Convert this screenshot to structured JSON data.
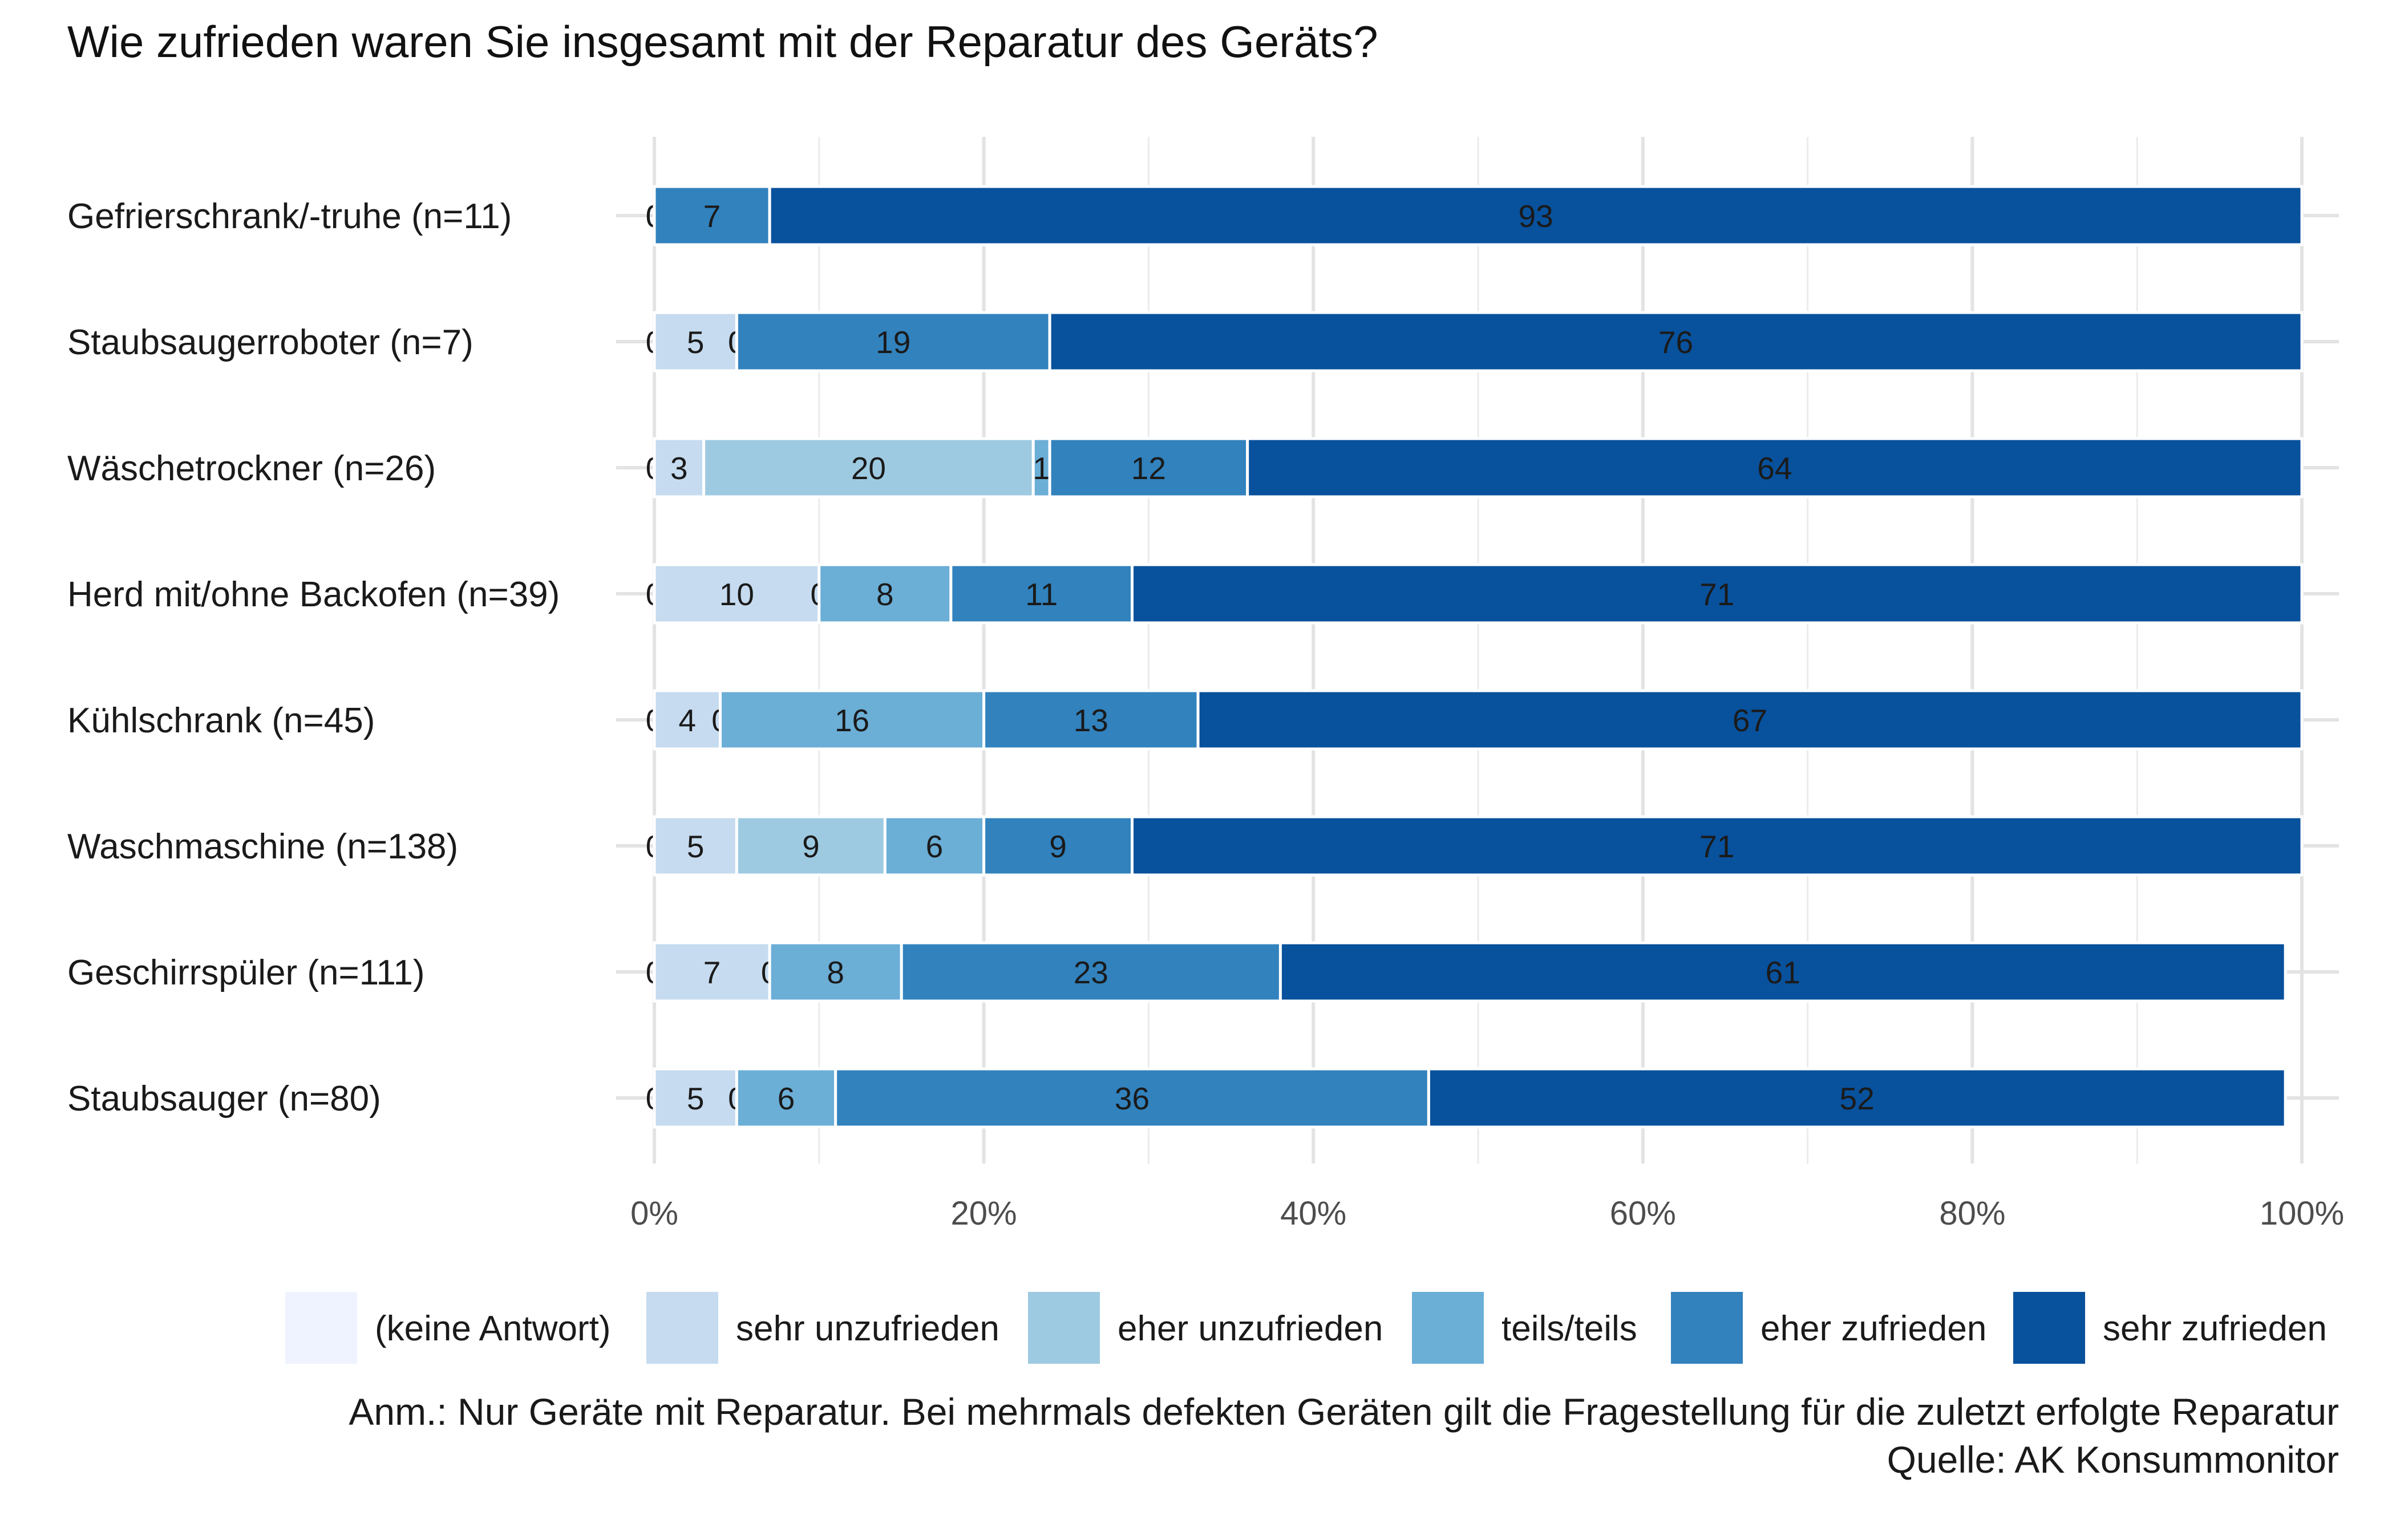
{
  "chart_data": {
    "type": "bar",
    "orientation": "horizontal",
    "stacked": true,
    "title": "Wie zufrieden waren Sie insgesamt mit der Reparatur des Geräts?",
    "xlabel": "",
    "ylabel": "",
    "xlim": [
      0,
      100
    ],
    "x_ticks": [
      "0%",
      "20%",
      "40%",
      "60%",
      "80%",
      "100%"
    ],
    "grid": true,
    "legend_position": "bottom",
    "categories": [
      "Gefrierschrank/-truhe (n=11)",
      "Staubsaugerroboter (n=7)",
      "Wäschetrockner (n=26)",
      "Herd mit/ohne Backofen (n=39)",
      "Kühlschrank (n=45)",
      "Waschmaschine (n=138)",
      "Geschirrspüler (n=111)",
      "Staubsauger (n=80)"
    ],
    "series": [
      {
        "name": "(keine Antwort)",
        "color": "#eff3ff",
        "values": [
          0,
          0,
          0,
          0,
          0,
          0,
          0,
          0
        ],
        "labels": [
          "0",
          "0",
          "0",
          "0",
          "0",
          "0",
          "0",
          "0"
        ]
      },
      {
        "name": "sehr unzufrieden",
        "color": "#c6dbef",
        "values": [
          0,
          5,
          3,
          10,
          4,
          5,
          7,
          5
        ],
        "labels": [
          "0",
          "5",
          "3",
          "10",
          "4",
          "5",
          "7",
          "5"
        ]
      },
      {
        "name": "eher unzufrieden",
        "color": "#9ecae1",
        "values": [
          0,
          0,
          20,
          0,
          0,
          9,
          0,
          0
        ],
        "labels": [
          "0",
          "0",
          "20",
          "0",
          "0",
          "9",
          "0",
          "0"
        ]
      },
      {
        "name": "teils/teils",
        "color": "#6baed6",
        "values": [
          0,
          0,
          1,
          8,
          16,
          6,
          8,
          6
        ],
        "labels": [
          "0",
          "0",
          "1",
          "8",
          "16",
          "6",
          "8",
          "6"
        ]
      },
      {
        "name": "eher zufrieden",
        "color": "#3182bd",
        "values": [
          7,
          19,
          12,
          11,
          13,
          9,
          23,
          36
        ],
        "labels": [
          "7",
          "19",
          "12",
          "11",
          "13",
          "9",
          "23",
          "36"
        ]
      },
      {
        "name": "sehr zufrieden",
        "color": "#08519c",
        "values": [
          93,
          76,
          64,
          71,
          67,
          71,
          61,
          52
        ],
        "labels": [
          "93",
          "76",
          "64",
          "71",
          "67",
          "71",
          "61",
          "52"
        ]
      }
    ]
  },
  "footnote": {
    "note": "Anm.: Nur Geräte mit Reparatur. Bei mehrmals defekten Geräten gilt die Fragestellung für die zuletzt erfolgte Reparatur",
    "source": "Quelle: AK Konsummonitor"
  }
}
